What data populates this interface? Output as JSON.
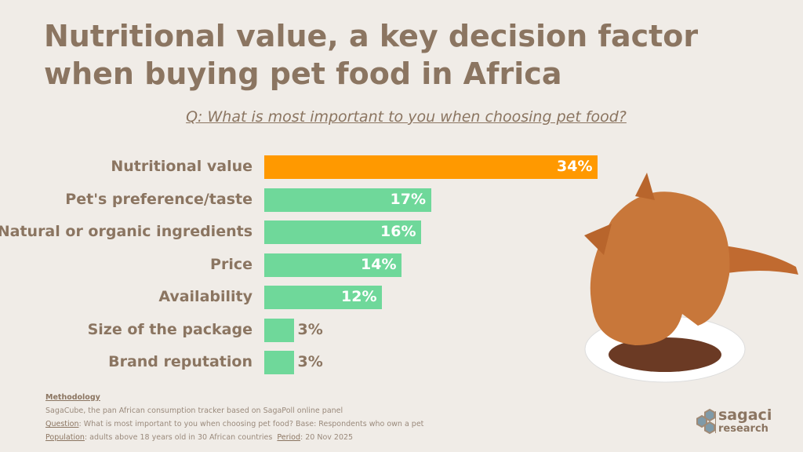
{
  "title": "Nutritional value, a key decision factor when buying pet food in Africa",
  "question": "Q: What is most important to you when choosing pet food?",
  "chart_data": {
    "type": "bar",
    "orientation": "horizontal",
    "categories": [
      "Nutritional value",
      "Pet's preference/taste",
      "Natural or organic ingredients",
      "Price",
      "Availability",
      "Size of the package",
      "Brand reputation"
    ],
    "values": [
      34,
      17,
      16,
      14,
      12,
      3,
      3
    ],
    "labels": [
      "34%",
      "17%",
      "16%",
      "14%",
      "12%",
      "3%",
      "3%"
    ],
    "unit": "%",
    "colors": {
      "highlight": "#ff9900",
      "default": "#6fd89a"
    },
    "grid": false
  },
  "methodology": {
    "heading": "Methodology",
    "line1": "SagaCube, the pan African consumption tracker based on SagaPoll online panel",
    "question_label": "Question",
    "question_text": ": What is most important to you when choosing pet food? Base: Respondents who own a pet",
    "population_label": "Population",
    "population_text": ": adults above 18 years old in 30 African countries  ",
    "period_label": "Period",
    "period_text": ": 20 Nov 2025"
  },
  "logo": {
    "line1": "sagaci",
    "line2": "research"
  },
  "image": "cat-eating-from-plate"
}
